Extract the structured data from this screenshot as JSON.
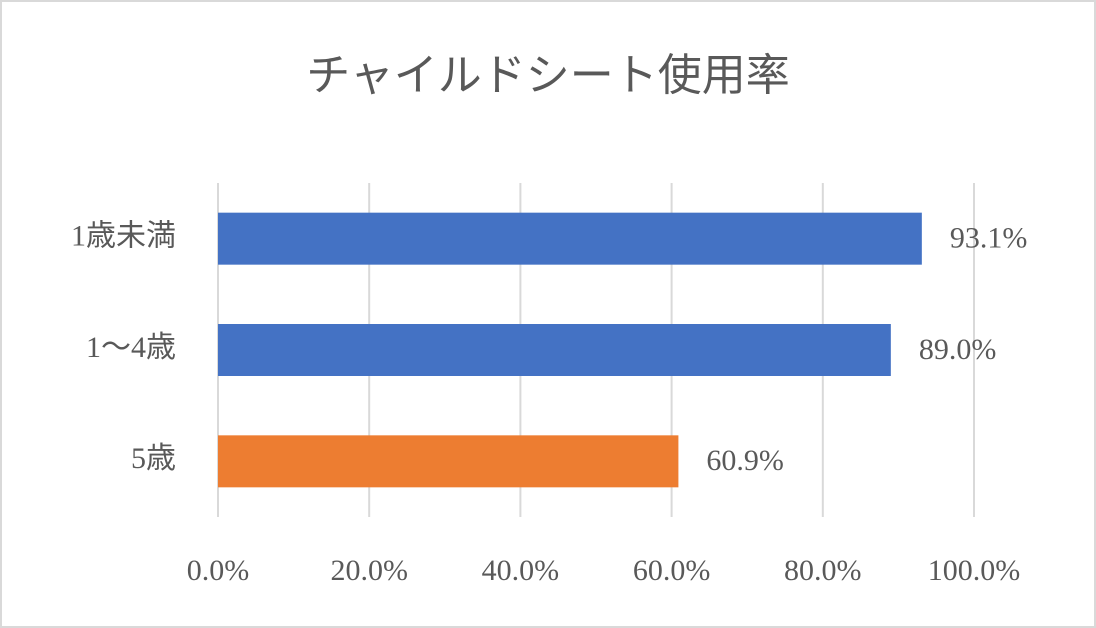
{
  "chart_data": {
    "type": "bar",
    "orientation": "horizontal",
    "title": "チャイルドシート使用率",
    "categories": [
      "1歳未満",
      "1〜4歳",
      "5歳"
    ],
    "values": [
      93.1,
      89.0,
      60.9
    ],
    "value_labels": [
      "93.1%",
      "89.0%",
      "60.9%"
    ],
    "colors": [
      "#4472c4",
      "#4472c4",
      "#ed7d31"
    ],
    "xlim": [
      0,
      100
    ],
    "xticks": [
      {
        "value": 0,
        "label": "0.0%"
      },
      {
        "value": 20,
        "label": "20.0%"
      },
      {
        "value": 40,
        "label": "40.0%"
      },
      {
        "value": 60,
        "label": "60.0%"
      },
      {
        "value": 80,
        "label": "80.0%"
      },
      {
        "value": 100,
        "label": "100.0%"
      }
    ],
    "grid": true
  }
}
